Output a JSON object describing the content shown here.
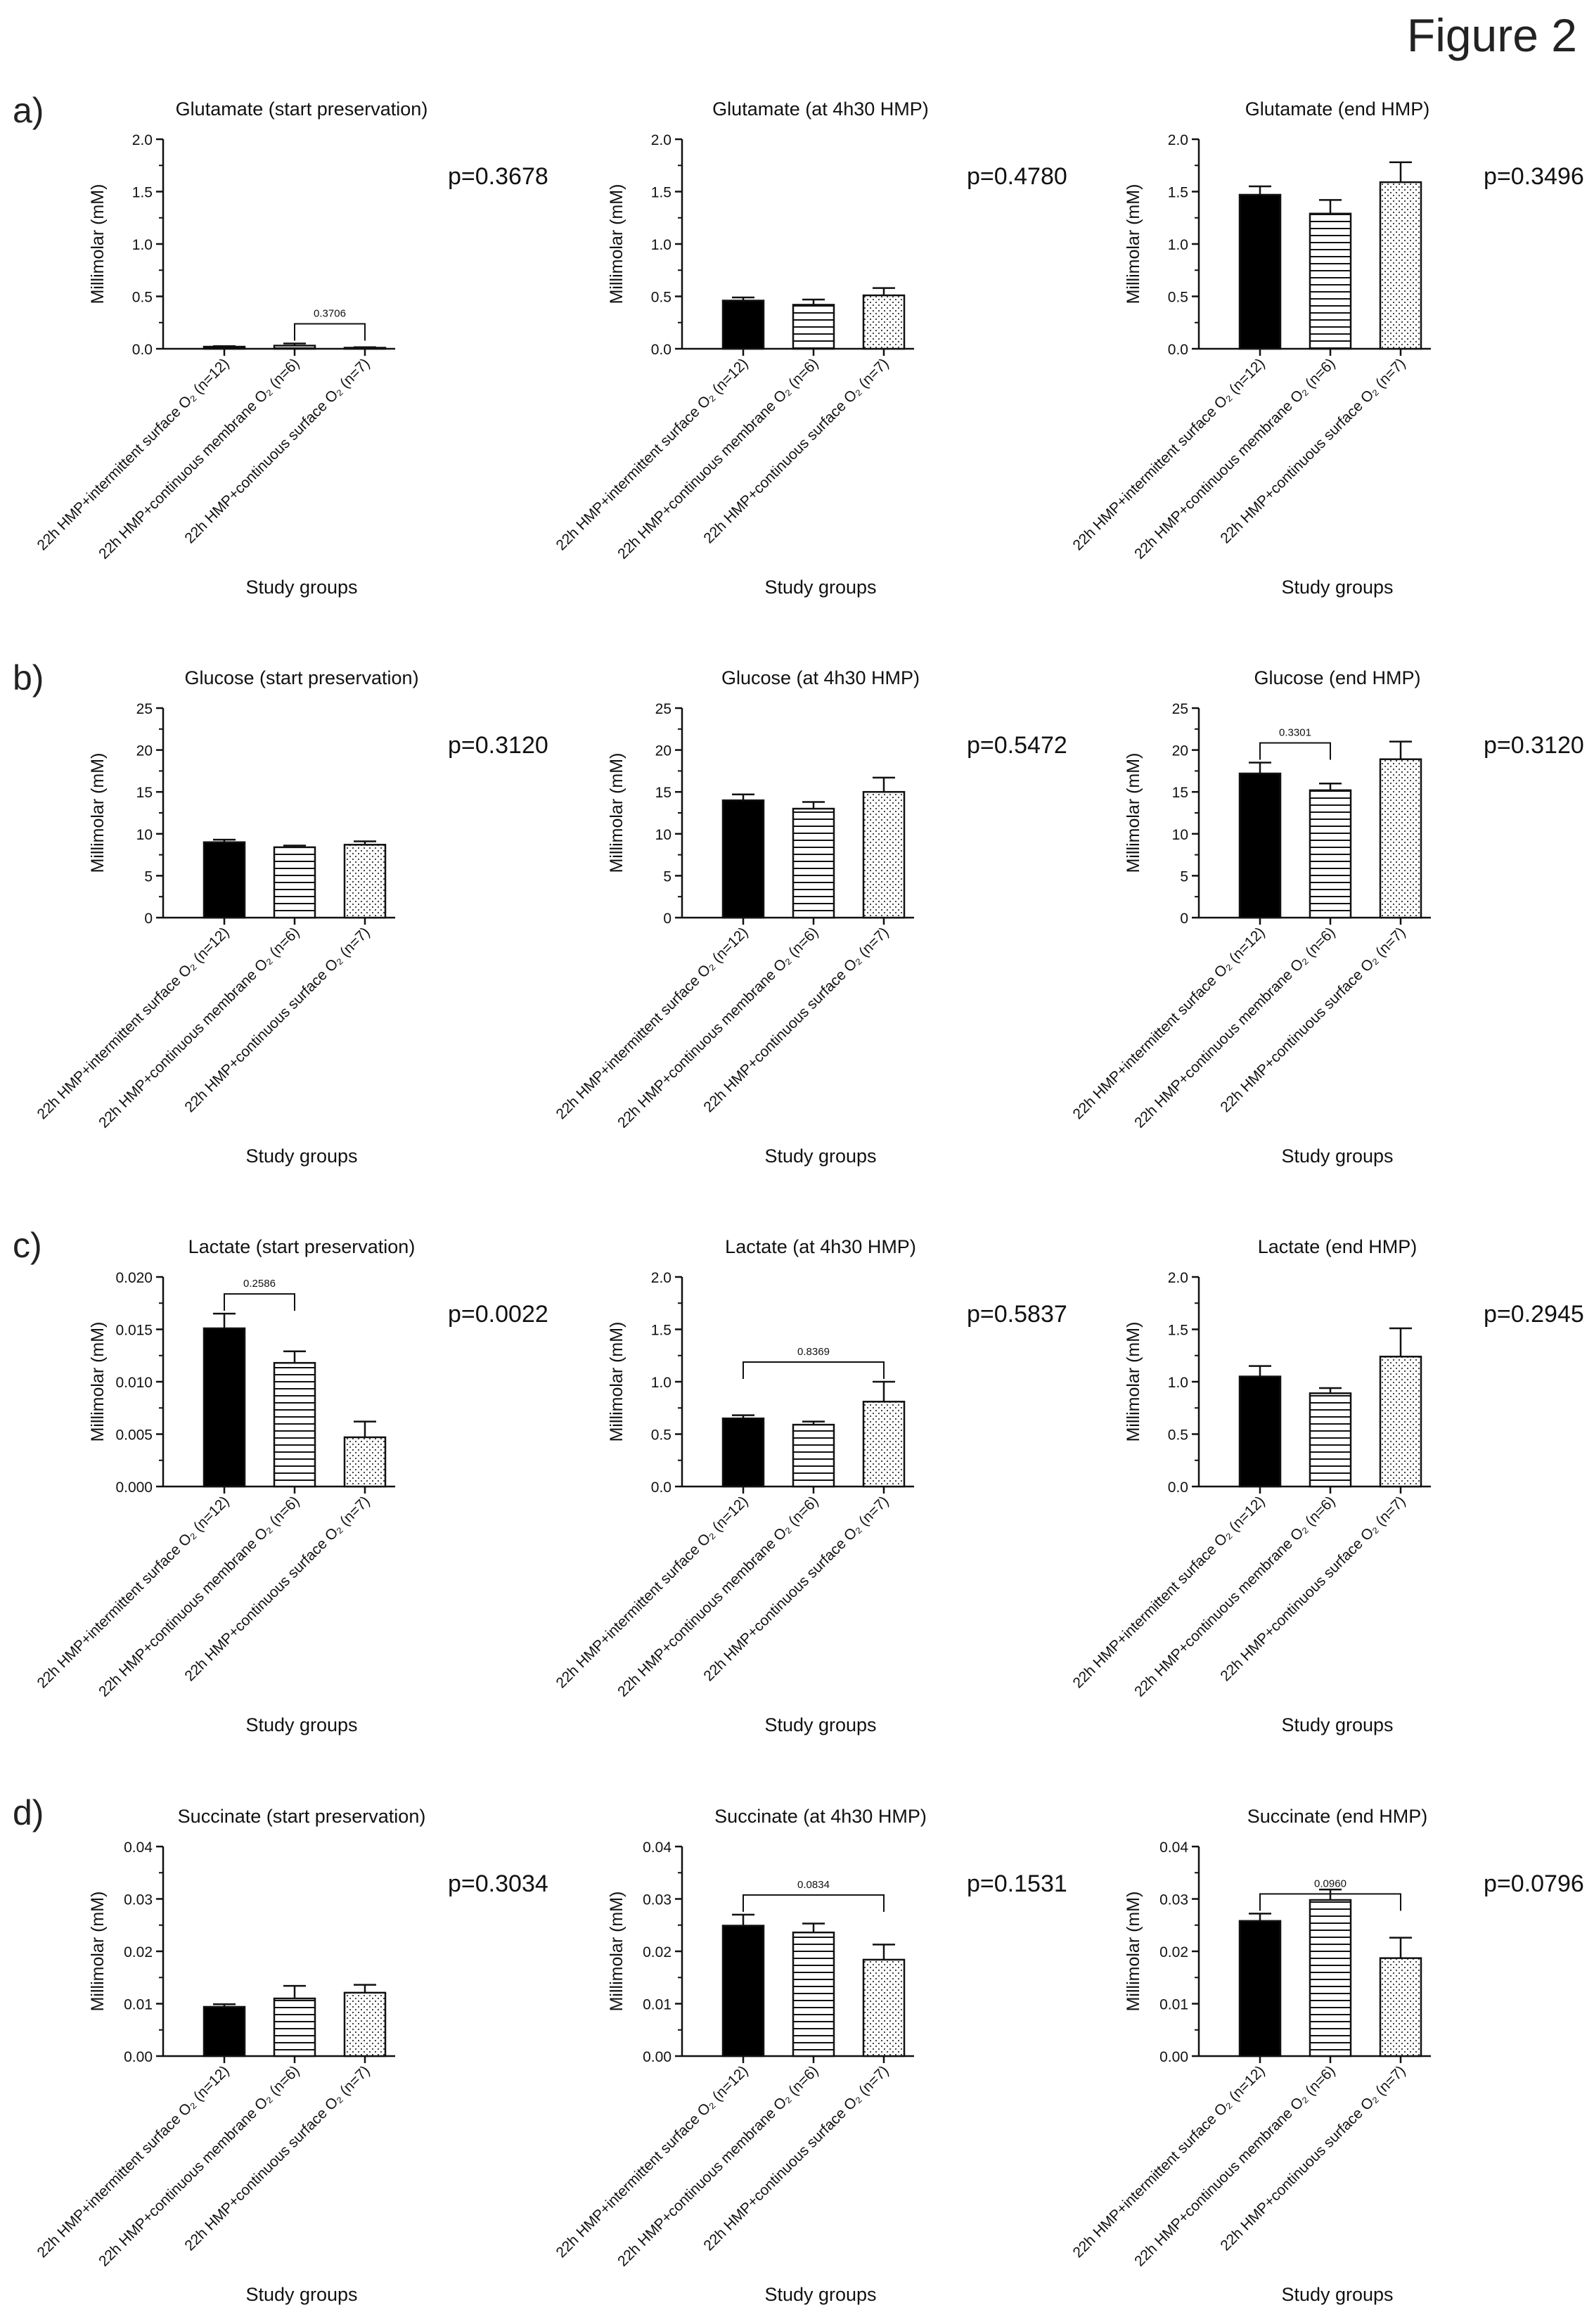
{
  "figure_title": "Figure 2",
  "row_labels": [
    "a)",
    "b)",
    "c)",
    "d)"
  ],
  "groups": [
    "22h HMP+intermittent surface O₂ (n=12)",
    "22h HMP+continuous membrane O₂ (n=6)",
    "22h HMP+continuous surface O₂ (n=7)"
  ],
  "xlabel": "Study groups",
  "ylabel": "Millimolar (mM)",
  "colors": {
    "bar1_fill": "#000000",
    "bar2_pattern": "horizontal-stripes",
    "bar3_pattern": "dots"
  },
  "chart_data": [
    {
      "type": "bar",
      "title": "Glutamate (start preservation)",
      "pvalue": "p=0.3678",
      "ylim": [
        0,
        2.0
      ],
      "ticks": [
        "0.0",
        "0.5",
        "1.0",
        "1.5",
        "2.0"
      ],
      "values": [
        0.02,
        0.03,
        0.01
      ],
      "errors": [
        0.005,
        0.02,
        0.005
      ],
      "bracket": {
        "from": 1,
        "to": 2,
        "label": "0.3706"
      }
    },
    {
      "type": "bar",
      "title": "Glutamate (at 4h30 HMP)",
      "pvalue": "p=0.4780",
      "ylim": [
        0,
        2.0
      ],
      "ticks": [
        "0.0",
        "0.5",
        "1.0",
        "1.5",
        "2.0"
      ],
      "values": [
        0.46,
        0.42,
        0.51
      ],
      "errors": [
        0.03,
        0.05,
        0.07
      ],
      "bracket": null
    },
    {
      "type": "bar",
      "title": "Glutamate (end HMP)",
      "pvalue": "p=0.3496",
      "ylim": [
        0,
        2.0
      ],
      "ticks": [
        "0.0",
        "0.5",
        "1.0",
        "1.5",
        "2.0"
      ],
      "values": [
        1.47,
        1.29,
        1.59
      ],
      "errors": [
        0.08,
        0.13,
        0.19
      ],
      "bracket": null
    },
    {
      "type": "bar",
      "title": "Glucose (start preservation)",
      "pvalue": "p=0.3120",
      "ylim": [
        0,
        25
      ],
      "ticks": [
        "0",
        "5",
        "10",
        "15",
        "20",
        "25"
      ],
      "values": [
        9.0,
        8.4,
        8.7
      ],
      "errors": [
        0.3,
        0.2,
        0.4
      ],
      "bracket": null
    },
    {
      "type": "bar",
      "title": "Glucose (at 4h30 HMP)",
      "pvalue": "p=0.5472",
      "ylim": [
        0,
        25
      ],
      "ticks": [
        "0",
        "5",
        "10",
        "15",
        "20",
        "25"
      ],
      "values": [
        14.0,
        13.0,
        15.0
      ],
      "errors": [
        0.7,
        0.8,
        1.7
      ],
      "bracket": null
    },
    {
      "type": "bar",
      "title": "Glucose (end HMP)",
      "pvalue": "p=0.3120",
      "ylim": [
        0,
        25
      ],
      "ticks": [
        "0",
        "5",
        "10",
        "15",
        "20",
        "25"
      ],
      "values": [
        17.2,
        15.2,
        18.9
      ],
      "errors": [
        1.3,
        0.8,
        2.1
      ],
      "bracket": {
        "from": 0,
        "to": 1,
        "label": "0.3301"
      }
    },
    {
      "type": "bar",
      "title": "Lactate (start preservation)",
      "pvalue": "p=0.0022",
      "ylim": [
        0,
        0.02
      ],
      "ticks": [
        "0.000",
        "0.005",
        "0.010",
        "0.015",
        "0.020"
      ],
      "values": [
        0.0151,
        0.0118,
        0.0047
      ],
      "errors": [
        0.0014,
        0.0011,
        0.0015
      ],
      "bracket": {
        "from": 0,
        "to": 1,
        "label": "0.2586"
      }
    },
    {
      "type": "bar",
      "title": "Lactate (at 4h30 HMP)",
      "pvalue": "p=0.5837",
      "ylim": [
        0,
        2.0
      ],
      "ticks": [
        "0.0",
        "0.5",
        "1.0",
        "1.5",
        "2.0"
      ],
      "values": [
        0.65,
        0.59,
        0.81
      ],
      "errors": [
        0.03,
        0.03,
        0.19
      ],
      "bracket": {
        "from": 0,
        "to": 2,
        "label": "0.8369"
      }
    },
    {
      "type": "bar",
      "title": "Lactate (end HMP)",
      "pvalue": "p=0.2945",
      "ylim": [
        0,
        2.0
      ],
      "ticks": [
        "0.0",
        "0.5",
        "1.0",
        "1.5",
        "2.0"
      ],
      "values": [
        1.05,
        0.89,
        1.24
      ],
      "errors": [
        0.1,
        0.05,
        0.27
      ],
      "bracket": null
    },
    {
      "type": "bar",
      "title": "Succinate (start preservation)",
      "pvalue": "p=0.3034",
      "ylim": [
        0,
        0.04
      ],
      "ticks": [
        "0.00",
        "0.01",
        "0.02",
        "0.03",
        "0.04"
      ],
      "values": [
        0.0094,
        0.011,
        0.0121
      ],
      "errors": [
        0.0005,
        0.0024,
        0.0015
      ],
      "bracket": null
    },
    {
      "type": "bar",
      "title": "Succinate (at 4h30 HMP)",
      "pvalue": "p=0.1531",
      "ylim": [
        0,
        0.04
      ],
      "ticks": [
        "0.00",
        "0.01",
        "0.02",
        "0.03",
        "0.04"
      ],
      "values": [
        0.0249,
        0.0236,
        0.0184
      ],
      "errors": [
        0.0021,
        0.0017,
        0.0029
      ],
      "bracket": {
        "from": 0,
        "to": 2,
        "label": "0.0834"
      }
    },
    {
      "type": "bar",
      "title": "Succinate (end HMP)",
      "pvalue": "p=0.0796",
      "ylim": [
        0,
        0.04
      ],
      "ticks": [
        "0.00",
        "0.01",
        "0.02",
        "0.03",
        "0.04"
      ],
      "values": [
        0.0258,
        0.0298,
        0.0187
      ],
      "errors": [
        0.0014,
        0.002,
        0.0039
      ],
      "bracket": {
        "from": 0,
        "to": 2,
        "label": "0.0960"
      }
    }
  ]
}
